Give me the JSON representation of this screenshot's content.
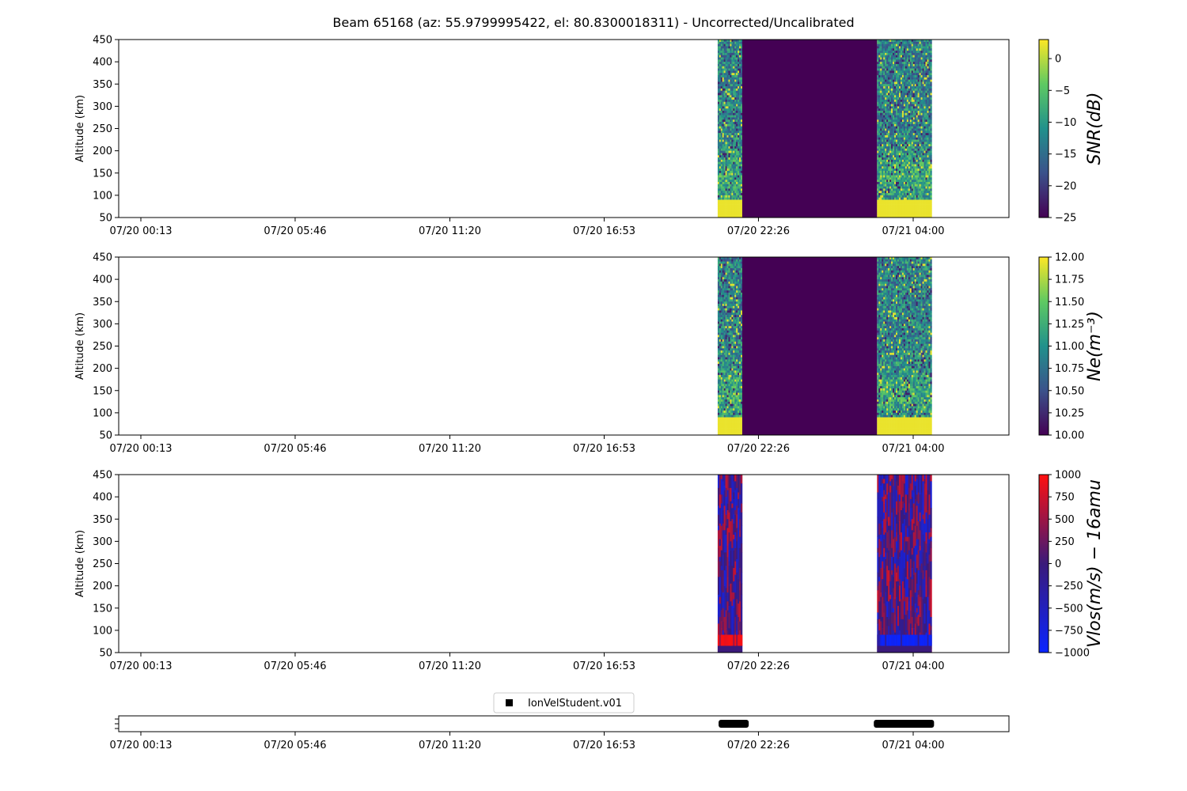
{
  "title": "Beam 65168 (az: 55.9799995422, el: 80.8300018311) - Uncorrected/Uncalibrated",
  "chart_data": [
    {
      "type": "heatmap",
      "ylabel": "Altitude (km)",
      "ylim": [
        50,
        450
      ],
      "yticks": [
        "50",
        "100",
        "150",
        "200",
        "250",
        "300",
        "350",
        "400",
        "450"
      ],
      "xticks": [
        "07/20 00:13",
        "07/20 05:46",
        "07/20 11:20",
        "07/20 16:53",
        "07/20 22:26",
        "07/21 04:00"
      ],
      "colormap": "viridis",
      "colorbar_label": "SNR(dB)",
      "colorbar_ticks": [
        "0",
        "−5",
        "−10",
        "−15",
        "−20",
        "−25"
      ],
      "colorbar_range": [
        -25,
        3
      ],
      "data_blocks": [
        {
          "start": "07/20 20:58",
          "end": "07/20 21:51",
          "content": "noisy, high at low altitude"
        },
        {
          "start": "07/20 21:51",
          "end": "07/21 02:42",
          "content": "minimum value"
        },
        {
          "start": "07/21 02:42",
          "end": "07/21 04:40",
          "content": "noisy, high at low altitude"
        }
      ]
    },
    {
      "type": "heatmap",
      "ylabel": "Altitude (km)",
      "ylim": [
        50,
        450
      ],
      "yticks": [
        "50",
        "100",
        "150",
        "200",
        "250",
        "300",
        "350",
        "400",
        "450"
      ],
      "xticks": [
        "07/20 00:13",
        "07/20 05:46",
        "07/20 11:20",
        "07/20 16:53",
        "07/20 22:26",
        "07/21 04:00"
      ],
      "colormap": "viridis",
      "colorbar_label": "Ne(m⁻³)",
      "colorbar_ticks": [
        "10.00",
        "10.25",
        "10.50",
        "10.75",
        "11.00",
        "11.25",
        "11.50",
        "11.75",
        "12.00"
      ],
      "colorbar_range": [
        10,
        12
      ],
      "data_blocks": [
        {
          "start": "07/20 20:58",
          "end": "07/20 21:51",
          "content": "noisy, high at low altitude"
        },
        {
          "start": "07/20 21:51",
          "end": "07/21 02:42",
          "content": "minimum value"
        },
        {
          "start": "07/21 02:42",
          "end": "07/21 04:40",
          "content": "noisy, high at low altitude"
        }
      ]
    },
    {
      "type": "heatmap",
      "ylabel": "Altitude (km)",
      "ylim": [
        50,
        450
      ],
      "yticks": [
        "50",
        "100",
        "150",
        "200",
        "250",
        "300",
        "350",
        "400",
        "450"
      ],
      "xticks": [
        "07/20 00:13",
        "07/20 05:46",
        "07/20 11:20",
        "07/20 16:53",
        "07/20 22:26",
        "07/21 04:00"
      ],
      "colormap": "bwr",
      "colorbar_label": "Vlos(m/s) − 16amu",
      "colorbar_ticks": [
        "1000",
        "750",
        "500",
        "250",
        "0",
        "−250",
        "−500",
        "−750",
        "−1000"
      ],
      "colorbar_range": [
        -1000,
        1000
      ],
      "data_blocks": [
        {
          "start": "07/20 20:58",
          "end": "07/20 21:51",
          "content": "mixed red/blue, red near 80 km"
        },
        {
          "start": "07/21 02:42",
          "end": "07/21 04:40",
          "content": "mixed red/blue, blue near 80 km"
        }
      ]
    },
    {
      "type": "scatter",
      "legend": [
        "IonVelStudent.v01"
      ],
      "legend_location": "top-center",
      "xticks": [
        "07/20 00:13",
        "07/20 05:46",
        "07/20 11:20",
        "07/20 16:53",
        "07/20 22:26",
        "07/21 04:00"
      ],
      "segments": [
        {
          "start": "07/20 21:00",
          "end": "07/20 22:05"
        },
        {
          "start": "07/21 02:35",
          "end": "07/21 04:45"
        }
      ]
    }
  ]
}
